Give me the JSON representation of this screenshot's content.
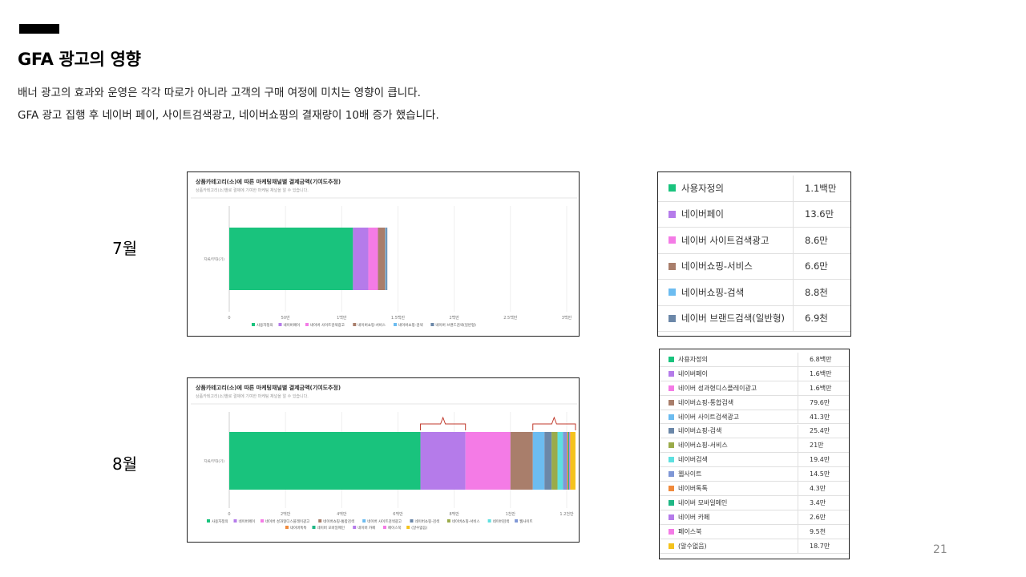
{
  "slide": {
    "title": "GFA 광고의 영향",
    "body_lines": [
      "배너 광고의 효과와 운영은 각각 따로가 아니라 고객의 구매 여정에 미치는 영향이 큽니다.",
      "GFA 광고 집행 후 네이버 페이, 사이트검색광고, 네이버쇼핑의 결재량이 10배 증가 했습니다."
    ],
    "page_number": "21"
  },
  "months": {
    "july": "7월",
    "august": "8월"
  },
  "chart_data": [
    {
      "type": "bar",
      "orientation": "horizontal-stacked",
      "title": "상품카테고리(소)에 따른 마케팅채널별 결제금액(기여도추정)",
      "subtitle": "상품카테고리(소)별로 결제에 기여한 마케팅 채널을 알 수 있습니다.",
      "categories": [
        "지류/부대(기)"
      ],
      "x_ticks": [
        "0",
        "50만",
        "1백만",
        "1.5백만",
        "2백만",
        "2.5백만",
        "3백만"
      ],
      "xlim": [
        0,
        3000000
      ],
      "series": [
        {
          "name": "사용자정의",
          "values": [
            1100000
          ],
          "color": "#19c37d"
        },
        {
          "name": "네이버페이",
          "values": [
            136000
          ],
          "color": "#b57bea"
        },
        {
          "name": "네이버 사이트검색광고",
          "values": [
            86000
          ],
          "color": "#f47be6"
        },
        {
          "name": "네이버쇼핑-서비스",
          "values": [
            66000
          ],
          "color": "#a97e6b"
        },
        {
          "name": "네이버쇼핑-검색",
          "values": [
            8800
          ],
          "color": "#6cbcf0"
        },
        {
          "name": "네이버 브랜드검색(일반형)",
          "values": [
            6900
          ],
          "color": "#6b87a8"
        }
      ],
      "grid": true,
      "legend": "bottom"
    },
    {
      "type": "bar",
      "orientation": "horizontal-stacked",
      "title": "상품카테고리(소)에 따른 마케팅채널별 결제금액(기여도추정)",
      "subtitle": "상품카테고리(소)별로 결제에 기여한 마케팅 채널을 알 수 있습니다.",
      "categories": [
        "지류/부대(기)"
      ],
      "x_ticks": [
        "0",
        "2백만",
        "4백만",
        "6백만",
        "8백만",
        "1천만",
        "1.2천만"
      ],
      "xlim": [
        0,
        12000000
      ],
      "series": [
        {
          "name": "사용자정의",
          "values": [
            6800000
          ],
          "color": "#19c37d"
        },
        {
          "name": "네이버페이",
          "values": [
            1600000
          ],
          "color": "#b57bea"
        },
        {
          "name": "네이버 성과형디스플레이광고",
          "values": [
            1600000
          ],
          "color": "#f47be6"
        },
        {
          "name": "네이버쇼핑-통합검색",
          "values": [
            796000
          ],
          "color": "#a97e6b"
        },
        {
          "name": "네이버 사이트검색광고",
          "values": [
            413000
          ],
          "color": "#6cbcf0"
        },
        {
          "name": "네이버쇼핑-검색",
          "values": [
            254000
          ],
          "color": "#6b87a8"
        },
        {
          "name": "네이버쇼핑-서비스",
          "values": [
            210000
          ],
          "color": "#9aab4a"
        },
        {
          "name": "네이버검색",
          "values": [
            194000
          ],
          "color": "#5ee0e0"
        },
        {
          "name": "웹사이트",
          "values": [
            145000
          ],
          "color": "#7f97d6"
        },
        {
          "name": "네이버톡톡",
          "values": [
            43000
          ],
          "color": "#f08a3c"
        },
        {
          "name": "네이버 모바일메인",
          "values": [
            34000
          ],
          "color": "#1fb785"
        },
        {
          "name": "네이버 카페",
          "values": [
            26000
          ],
          "color": "#b57bea"
        },
        {
          "name": "페이스북",
          "values": [
            9500
          ],
          "color": "#f47be6"
        },
        {
          "name": "(알수없음)",
          "values": [
            187000
          ],
          "color": "#f4c21c"
        }
      ],
      "grid": true,
      "legend": "bottom"
    }
  ],
  "july_table": {
    "rows": [
      {
        "name": "사용자정의",
        "value": "1.1백만",
        "color": "#19c37d"
      },
      {
        "name": "네이버페이",
        "value": "13.6만",
        "color": "#b57bea"
      },
      {
        "name": "네이버 사이트검색광고",
        "value": "8.6만",
        "color": "#f47be6"
      },
      {
        "name": "네이버쇼핑-서비스",
        "value": "6.6만",
        "color": "#a97e6b"
      },
      {
        "name": "네이버쇼핑-검색",
        "value": "8.8천",
        "color": "#6cbcf0"
      },
      {
        "name": "네이버 브랜드검색(일반형)",
        "value": "6.9천",
        "color": "#6b87a8"
      }
    ]
  },
  "august_table": {
    "rows": [
      {
        "name": "사용자정의",
        "value": "6.8백만",
        "color": "#19c37d"
      },
      {
        "name": "네이버페이",
        "value": "1.6백만",
        "color": "#b57bea"
      },
      {
        "name": "네이버 성과형디스플레이광고",
        "value": "1.6백만",
        "color": "#f47be6"
      },
      {
        "name": "네이버쇼핑-통합검색",
        "value": "79.6만",
        "color": "#a97e6b"
      },
      {
        "name": "네이버 사이트검색광고",
        "value": "41.3만",
        "color": "#6cbcf0"
      },
      {
        "name": "네이버쇼핑-검색",
        "value": "25.4만",
        "color": "#6b87a8"
      },
      {
        "name": "네이버쇼핑-서비스",
        "value": "21만",
        "color": "#9aab4a"
      },
      {
        "name": "네이버검색",
        "value": "19.4만",
        "color": "#5ee0e0"
      },
      {
        "name": "웹사이트",
        "value": "14.5만",
        "color": "#7f97d6"
      },
      {
        "name": "네이버톡톡",
        "value": "4.3만",
        "color": "#f08a3c"
      },
      {
        "name": "네이버 모바일메인",
        "value": "3.4만",
        "color": "#1fb785"
      },
      {
        "name": "네이버 카페",
        "value": "2.6만",
        "color": "#b57bea"
      },
      {
        "name": "페이스북",
        "value": "9.5천",
        "color": "#f47be6"
      },
      {
        "name": "(알수없음)",
        "value": "18.7만",
        "color": "#f4c21c"
      }
    ]
  }
}
